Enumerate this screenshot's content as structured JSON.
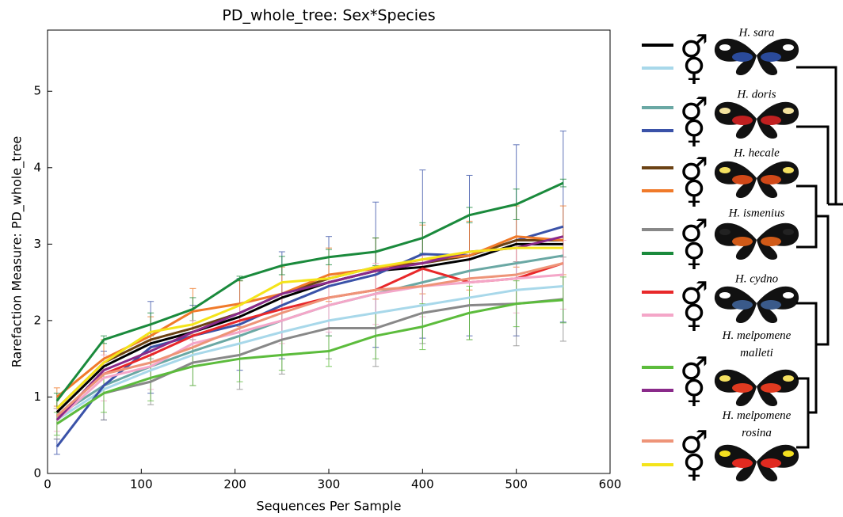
{
  "chart_data": {
    "type": "line",
    "title": "PD_whole_tree: Sex*Species",
    "x_label": "Sequences Per Sample",
    "y_label": "Rarefaction Measure: PD_whole_tree",
    "xlim": [
      0,
      600
    ],
    "xticks": [
      0,
      100,
      200,
      300,
      400,
      500,
      600
    ],
    "ylim": [
      0,
      5.8
    ],
    "yticks": [
      0,
      1,
      2,
      3,
      4,
      5
    ],
    "x": [
      10,
      60,
      110,
      155,
      205,
      250,
      300,
      350,
      400,
      450,
      500,
      550
    ],
    "species": [
      "H. sara",
      "H. doris",
      "H. hecale",
      "H. ismenius",
      "H. cydno",
      "H. melpomene malleti",
      "H. melpomene rosina"
    ],
    "series": [
      {
        "name": "♂",
        "color": "#000000",
        "values": [
          0.8,
          1.4,
          1.7,
          1.85,
          2.05,
          2.3,
          2.5,
          2.65,
          2.7,
          2.8,
          3.0,
          3.0
        ]
      },
      {
        "name": "♀",
        "color": "#a8d8ea",
        "values": [
          0.7,
          1.1,
          1.35,
          1.55,
          1.7,
          1.85,
          2.0,
          2.1,
          2.2,
          2.3,
          2.4,
          2.45
        ]
      },
      {
        "name": "♂",
        "color": "#6aa8a4",
        "values": [
          0.75,
          1.15,
          1.4,
          1.6,
          1.8,
          2.0,
          2.2,
          2.35,
          2.5,
          2.65,
          2.75,
          2.85
        ]
      },
      {
        "name": "♀",
        "color": "#3a52a8",
        "values": [
          0.35,
          1.15,
          1.65,
          1.8,
          1.95,
          2.2,
          2.45,
          2.6,
          2.87,
          2.85,
          3.05,
          3.23
        ],
        "errors": [
          0.1,
          0.45,
          0.6,
          0.4,
          0.6,
          0.7,
          0.65,
          0.95,
          1.1,
          1.05,
          1.25,
          1.25
        ]
      },
      {
        "name": "♂",
        "color": "#6b4214",
        "values": [
          0.85,
          1.45,
          1.75,
          1.9,
          2.1,
          2.35,
          2.55,
          2.7,
          2.75,
          2.85,
          3.05,
          3.05
        ]
      },
      {
        "name": "♀",
        "color": "#f07a2a",
        "values": [
          1.0,
          1.5,
          1.8,
          2.12,
          2.22,
          2.35,
          2.6,
          2.68,
          2.8,
          2.85,
          3.1,
          3.05
        ],
        "errors": [
          0.12,
          0.25,
          0.25,
          0.3,
          0.3,
          0.35,
          0.35,
          0.4,
          0.45,
          0.45,
          0.4,
          0.45
        ]
      },
      {
        "name": "♂",
        "color": "#888888",
        "values": [
          0.65,
          1.05,
          1.2,
          1.45,
          1.55,
          1.75,
          1.9,
          1.9,
          2.1,
          2.2,
          2.22,
          2.28
        ],
        "errors": [
          0.2,
          0.35,
          0.3,
          0.3,
          0.45,
          0.45,
          0.4,
          0.5,
          0.4,
          0.45,
          0.55,
          0.55
        ]
      },
      {
        "name": "♀",
        "color": "#1a8a3c",
        "values": [
          0.95,
          1.75,
          1.95,
          2.15,
          2.55,
          2.72,
          2.83,
          2.9,
          3.08,
          3.38,
          3.52,
          3.8
        ],
        "errors": [
          0.1,
          0.05,
          0.15,
          0.15,
          0.03,
          0.12,
          0.1,
          0.18,
          0.2,
          0.1,
          0.2,
          0.05
        ]
      },
      {
        "name": "♂",
        "color": "#e8282a",
        "values": [
          0.75,
          1.3,
          1.55,
          1.8,
          2.0,
          2.15,
          2.3,
          2.4,
          2.68,
          2.5,
          2.55,
          2.75
        ]
      },
      {
        "name": "♀",
        "color": "#f4a6c8",
        "values": [
          0.7,
          1.25,
          1.4,
          1.7,
          1.85,
          2.0,
          2.2,
          2.35,
          2.45,
          2.5,
          2.55,
          2.6
        ],
        "errors": [
          0.15,
          0.3,
          0.3,
          0.3,
          0.35,
          0.3,
          0.35,
          0.4,
          0.4,
          0.4,
          0.45,
          0.45
        ]
      },
      {
        "name": "♂",
        "color": "#5cbc3c",
        "values": [
          0.65,
          1.05,
          1.25,
          1.4,
          1.5,
          1.55,
          1.6,
          1.8,
          1.92,
          2.1,
          2.22,
          2.27
        ],
        "errors": [
          0.15,
          0.25,
          0.3,
          0.25,
          0.3,
          0.2,
          0.2,
          0.3,
          0.3,
          0.35,
          0.3,
          0.3
        ]
      },
      {
        "name": "♀",
        "color": "#8a2a8a",
        "values": [
          0.7,
          1.35,
          1.6,
          1.85,
          2.1,
          2.35,
          2.5,
          2.65,
          2.75,
          2.9,
          2.95,
          3.1
        ]
      },
      {
        "name": "♂",
        "color": "#ee9478",
        "values": [
          0.75,
          1.3,
          1.45,
          1.65,
          1.9,
          2.1,
          2.3,
          2.4,
          2.45,
          2.55,
          2.6,
          2.75
        ]
      },
      {
        "name": "♀",
        "color": "#f4e41a",
        "values": [
          0.85,
          1.45,
          1.85,
          1.95,
          2.2,
          2.5,
          2.55,
          2.7,
          2.8,
          2.9,
          2.95,
          2.95
        ]
      }
    ]
  }
}
